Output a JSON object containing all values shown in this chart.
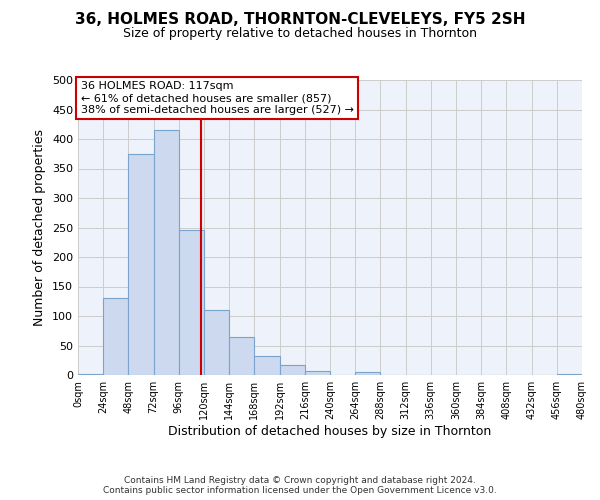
{
  "title": "36, HOLMES ROAD, THORNTON-CLEVELEYS, FY5 2SH",
  "subtitle": "Size of property relative to detached houses in Thornton",
  "xlabel": "Distribution of detached houses by size in Thornton",
  "ylabel": "Number of detached properties",
  "bin_edges": [
    0,
    24,
    48,
    72,
    96,
    120,
    144,
    168,
    192,
    216,
    240,
    264,
    288,
    312,
    336,
    360,
    384,
    408,
    432,
    456,
    480
  ],
  "bar_heights": [
    2,
    130,
    375,
    415,
    245,
    110,
    65,
    33,
    17,
    6,
    0,
    5,
    0,
    0,
    0,
    0,
    0,
    0,
    0,
    2
  ],
  "bar_color": "#ccd9ef",
  "bar_edgecolor": "#7aa4cc",
  "vline_x": 117,
  "vline_color": "#cc0000",
  "ylim": [
    0,
    500
  ],
  "yticks": [
    0,
    50,
    100,
    150,
    200,
    250,
    300,
    350,
    400,
    450,
    500
  ],
  "xtick_labels": [
    "0sqm",
    "24sqm",
    "48sqm",
    "72sqm",
    "96sqm",
    "120sqm",
    "144sqm",
    "168sqm",
    "192sqm",
    "216sqm",
    "240sqm",
    "264sqm",
    "288sqm",
    "312sqm",
    "336sqm",
    "360sqm",
    "384sqm",
    "408sqm",
    "432sqm",
    "456sqm",
    "480sqm"
  ],
  "annotation_title": "36 HOLMES ROAD: 117sqm",
  "annotation_line1": "← 61% of detached houses are smaller (857)",
  "annotation_line2": "38% of semi-detached houses are larger (527) →",
  "annotation_box_color": "#ffffff",
  "annotation_box_edgecolor": "#cc0000",
  "footer_line1": "Contains HM Land Registry data © Crown copyright and database right 2024.",
  "footer_line2": "Contains public sector information licensed under the Open Government Licence v3.0.",
  "grid_color": "#cccccc",
  "background_color": "#eef2fa"
}
